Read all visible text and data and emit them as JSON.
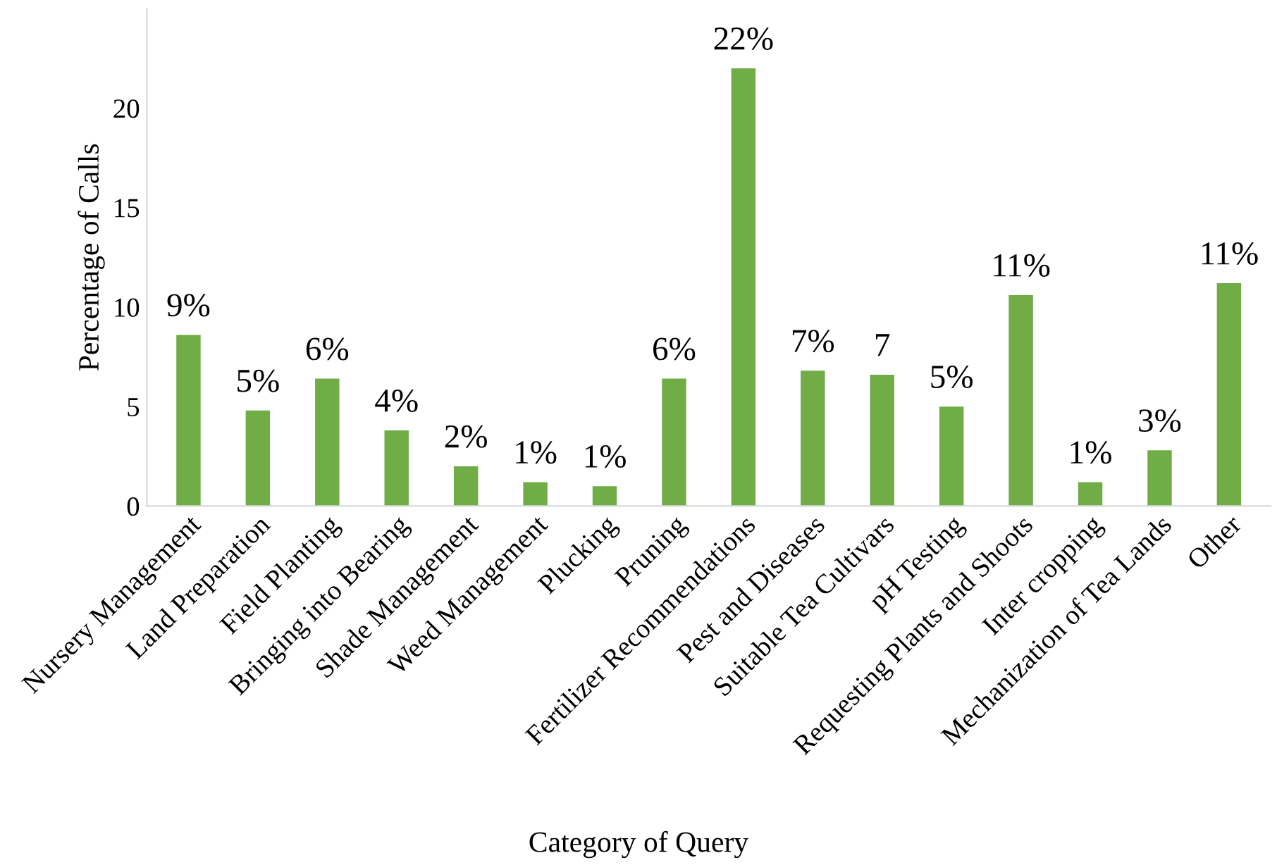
{
  "chart_data": {
    "type": "bar",
    "xlabel": "Category of Query",
    "ylabel": "Percentage of Calls",
    "categories": [
      "Nursery Management",
      "Land Preparation",
      "Field Planting",
      "Bringing into Bearing",
      "Shade Management",
      "Weed Management",
      "Plucking",
      "Pruning",
      "Fertilizer Recommendations",
      "Pest and Diseases",
      "Suitable Tea Cultivars",
      "pH Testing",
      "Requesting Plants and Shoots",
      "Inter cropping",
      "Mechanization of Tea Lands",
      "Other"
    ],
    "values": [
      8.6,
      4.8,
      6.4,
      3.8,
      2.0,
      1.2,
      1.0,
      6.4,
      22.0,
      6.8,
      6.6,
      5.0,
      10.6,
      1.2,
      2.8,
      11.2
    ],
    "value_labels": [
      "9%",
      "5%",
      "6%",
      "4%",
      "2%",
      "1%",
      "1%",
      "6%",
      "22%",
      "7%",
      "7",
      "5%",
      "11%",
      "1%",
      "3%",
      "11%"
    ],
    "color": "#70ad47",
    "ylim": [
      0,
      25
    ],
    "yticks": [
      0,
      5,
      10,
      15,
      20
    ],
    "grid": false
  }
}
